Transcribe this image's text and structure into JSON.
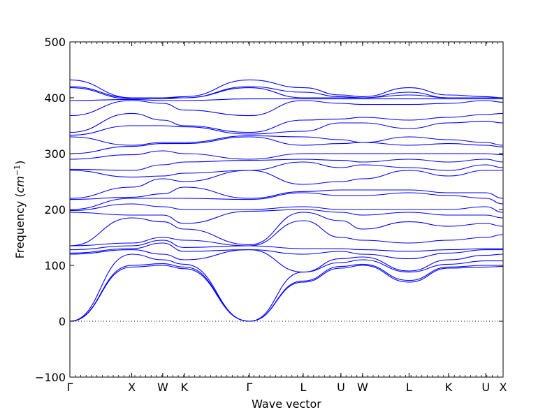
{
  "chart_data": {
    "type": "line",
    "title": "",
    "xlabel": "Wave vector",
    "ylabel": {
      "prefix": "Frequency (",
      "unit_base": "cm",
      "unit_exp": "−1",
      "suffix": ")"
    },
    "ylim": [
      -100,
      500
    ],
    "yticks": [
      -100,
      0,
      100,
      200,
      300,
      400,
      500
    ],
    "ytick_labels": [
      "−100",
      "0",
      "100",
      "200",
      "300",
      "400",
      "500"
    ],
    "zero_line": true,
    "grid": false,
    "legend": "none",
    "line_color": "#0000ff",
    "x_high_symmetry": [
      {
        "label": "Γ",
        "x": 0.0
      },
      {
        "label": "X",
        "x": 1.0
      },
      {
        "label": "W",
        "x": 1.5
      },
      {
        "label": "K",
        "x": 1.85
      },
      {
        "label": "Γ",
        "x": 2.9
      },
      {
        "label": "L",
        "x": 3.77
      },
      {
        "label": "U",
        "x": 4.38
      },
      {
        "label": "W",
        "x": 4.73
      },
      {
        "label": "L",
        "x": 5.48
      },
      {
        "label": "K",
        "x": 6.12
      },
      {
        "label": "U",
        "x": 6.72
      },
      {
        "label": "X",
        "x": 7.0
      }
    ],
    "series": [
      {
        "values": [
          0,
          97,
          100,
          94,
          0,
          70,
          95,
          100,
          70,
          95,
          97,
          98
        ]
      },
      {
        "values": [
          0,
          100,
          103,
          97,
          0,
          72,
          98,
          102,
          73,
          97,
          100,
          100
        ]
      },
      {
        "values": [
          0,
          120,
          110,
          102,
          0,
          88,
          105,
          110,
          88,
          102,
          108,
          108
        ]
      },
      {
        "values": [
          120,
          128,
          120,
          110,
          128,
          88,
          112,
          115,
          90,
          110,
          118,
          120
        ]
      },
      {
        "values": [
          122,
          130,
          140,
          125,
          128,
          120,
          125,
          120,
          112,
          122,
          128,
          128
        ]
      },
      {
        "values": [
          128,
          135,
          145,
          132,
          135,
          130,
          130,
          128,
          125,
          128,
          130,
          130
        ]
      },
      {
        "values": [
          135,
          140,
          150,
          145,
          135,
          180,
          150,
          145,
          140,
          145,
          150,
          155
        ]
      },
      {
        "values": [
          135,
          185,
          178,
          165,
          137,
          195,
          180,
          165,
          178,
          170,
          175,
          170
        ]
      },
      {
        "values": [
          195,
          190,
          190,
          175,
          197,
          200,
          195,
          190,
          195,
          190,
          190,
          185
        ]
      },
      {
        "values": [
          198,
          210,
          205,
          200,
          200,
          205,
          200,
          200,
          200,
          200,
          205,
          195
        ]
      },
      {
        "values": [
          200,
          220,
          220,
          220,
          218,
          230,
          225,
          225,
          230,
          225,
          220,
          210
        ]
      },
      {
        "values": [
          218,
          222,
          228,
          240,
          220,
          232,
          235,
          235,
          235,
          230,
          230,
          220
        ]
      },
      {
        "values": [
          220,
          240,
          255,
          250,
          270,
          245,
          250,
          255,
          270,
          260,
          270,
          270
        ]
      },
      {
        "values": [
          270,
          258,
          260,
          265,
          270,
          285,
          275,
          280,
          275,
          270,
          280,
          275
        ]
      },
      {
        "values": [
          272,
          270,
          280,
          285,
          288,
          290,
          288,
          285,
          290,
          285,
          290,
          285
        ]
      },
      {
        "values": [
          290,
          298,
          305,
          300,
          290,
          300,
          300,
          300,
          300,
          300,
          300,
          298
        ]
      },
      {
        "values": [
          300,
          313,
          318,
          318,
          330,
          315,
          318,
          320,
          315,
          318,
          315,
          312
        ]
      },
      {
        "values": [
          330,
          315,
          320,
          320,
          332,
          330,
          325,
          320,
          330,
          325,
          320,
          315
        ]
      },
      {
        "values": [
          333,
          350,
          350,
          348,
          335,
          340,
          355,
          355,
          345,
          355,
          358,
          355
        ]
      },
      {
        "values": [
          338,
          372,
          360,
          350,
          338,
          360,
          362,
          365,
          360,
          365,
          370,
          372
        ]
      },
      {
        "values": [
          368,
          395,
          390,
          378,
          368,
          395,
          390,
          388,
          388,
          390,
          395,
          392
        ]
      },
      {
        "values": [
          395,
          397,
          395,
          395,
          398,
          398,
          398,
          398,
          398,
          398,
          398,
          398
        ]
      },
      {
        "values": [
          418,
          398,
          398,
          400,
          418,
          400,
          400,
          400,
          405,
          400,
          400,
          400
        ]
      },
      {
        "values": [
          420,
          400,
          400,
          400,
          420,
          410,
          402,
          400,
          410,
          400,
          400,
          400
        ]
      },
      {
        "values": [
          432,
          400,
          400,
          402,
          432,
          418,
          405,
          402,
          418,
          405,
          402,
          400
        ]
      }
    ]
  }
}
